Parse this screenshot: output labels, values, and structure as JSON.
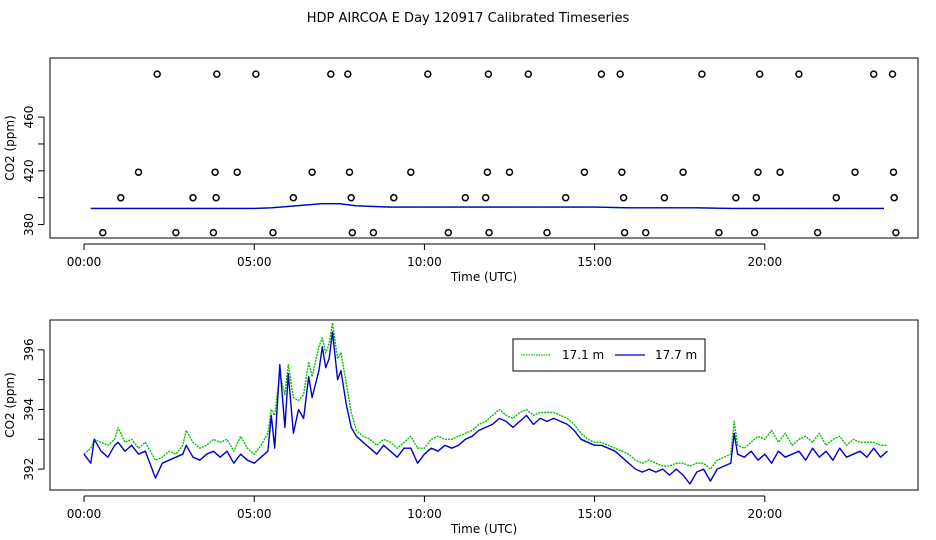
{
  "title": "HDP AIRCOA E  Day 120917  Calibrated Timeseries",
  "colors": {
    "green": "#00c000",
    "blue": "#0000cc",
    "black": "#000000"
  },
  "chart_data": [
    {
      "type": "line",
      "panel": "top",
      "xlabel": "Time (UTC)",
      "ylabel": "CO2 (ppm)",
      "x_ticks": [
        0,
        5,
        10,
        15,
        20
      ],
      "x_tick_labels": [
        "00:00",
        "05:00",
        "10:00",
        "15:00",
        "20:00"
      ],
      "y_ticks": [
        380,
        420,
        460
      ],
      "y_tick_labels": [
        "380",
        "420",
        "460"
      ],
      "xlim": [
        -1,
        24.5
      ],
      "ylim": [
        370,
        504
      ],
      "series": [
        {
          "name": "17.1 m",
          "color": "green",
          "x": [
            0.2,
            1,
            2,
            3,
            4,
            5,
            5.5,
            6,
            6.5,
            7,
            7.5,
            8,
            9,
            10,
            11,
            12,
            13,
            14,
            15,
            16,
            17,
            18,
            19,
            20,
            21,
            22,
            23,
            23.5
          ],
          "y": [
            392,
            392,
            392,
            392,
            392,
            392,
            392.5,
            393.5,
            394.5,
            395.5,
            395.5,
            394,
            393,
            393,
            393,
            393,
            393,
            393,
            393,
            392.5,
            392.5,
            392.5,
            392,
            392,
            392,
            392,
            392,
            392
          ]
        },
        {
          "name": "17.7 m",
          "color": "blue",
          "x": [
            0.2,
            1,
            2,
            3,
            4,
            5,
            5.5,
            6,
            6.5,
            7,
            7.5,
            8,
            9,
            10,
            11,
            12,
            13,
            14,
            15,
            16,
            17,
            18,
            19,
            20,
            21,
            22,
            23,
            23.5
          ],
          "y": [
            392,
            392,
            392,
            392,
            392,
            392,
            392.5,
            393.5,
            394.5,
            395.5,
            395.5,
            394,
            393,
            393,
            393,
            393,
            393,
            393,
            393,
            392.5,
            392.5,
            392.5,
            392,
            392,
            392,
            392,
            392,
            392
          ]
        }
      ],
      "reference_points": {
        "x": [
          0.55,
          1.08,
          1.6,
          2.15,
          2.7,
          3.2,
          3.8,
          3.85,
          3.88,
          3.9,
          4.5,
          5.05,
          5.55,
          6.15,
          6.7,
          7.25,
          7.75,
          7.8,
          7.85,
          7.88,
          8.5,
          9.1,
          9.6,
          10.1,
          10.7,
          11.2,
          11.8,
          11.85,
          11.88,
          11.9,
          12.5,
          13.05,
          13.6,
          14.15,
          14.7,
          15.2,
          15.75,
          15.8,
          15.85,
          15.88,
          16.5,
          17.05,
          17.6,
          18.15,
          18.65,
          19.15,
          19.7,
          19.75,
          19.8,
          19.85,
          20.45,
          21.0,
          21.55,
          22.1,
          22.65,
          23.2,
          23.75,
          23.78,
          23.8,
          23.85
        ],
        "y": [
          374,
          400,
          419,
          492,
          374,
          400,
          374,
          419,
          400,
          492,
          419,
          492,
          374,
          400,
          419,
          492,
          492,
          419,
          400,
          374,
          374,
          400,
          419,
          492,
          374,
          400,
          400,
          419,
          492,
          374,
          419,
          492,
          374,
          400,
          419,
          492,
          492,
          419,
          400,
          374,
          374,
          400,
          419,
          492,
          374,
          400,
          374,
          400,
          419,
          492,
          419,
          492,
          374,
          400,
          419,
          492,
          492,
          419,
          400,
          374
        ]
      }
    },
    {
      "type": "line",
      "panel": "bottom",
      "xlabel": "Time (UTC)",
      "ylabel": "CO2 (ppm)",
      "x_ticks": [
        0,
        5,
        10,
        15,
        20
      ],
      "x_tick_labels": [
        "00:00",
        "05:00",
        "10:00",
        "15:00",
        "20:00"
      ],
      "y_ticks": [
        392,
        394,
        396
      ],
      "y_tick_labels": [
        "392",
        "394",
        "396"
      ],
      "xlim": [
        -1,
        24.5
      ],
      "ylim": [
        391.3,
        397.0
      ],
      "legend": "top-center",
      "series": [
        {
          "name": "17.1 m",
          "color": "green",
          "x": [
            0,
            0.2,
            0.3,
            0.5,
            0.7,
            0.9,
            1.0,
            1.2,
            1.4,
            1.6,
            1.8,
            2.0,
            2.1,
            2.3,
            2.5,
            2.7,
            2.9,
            3.0,
            3.2,
            3.4,
            3.6,
            3.8,
            4.0,
            4.2,
            4.4,
            4.6,
            4.8,
            5.0,
            5.2,
            5.4,
            5.5,
            5.6,
            5.75,
            5.9,
            6.0,
            6.15,
            6.3,
            6.45,
            6.6,
            6.7,
            6.9,
            7.0,
            7.1,
            7.2,
            7.3,
            7.45,
            7.55,
            7.7,
            7.85,
            8.0,
            8.2,
            8.4,
            8.6,
            8.8,
            9.0,
            9.2,
            9.4,
            9.6,
            9.8,
            10.0,
            10.2,
            10.4,
            10.6,
            10.8,
            11.0,
            11.2,
            11.4,
            11.6,
            11.8,
            12.0,
            12.2,
            12.4,
            12.6,
            12.8,
            13.0,
            13.2,
            13.4,
            13.6,
            13.8,
            14.0,
            14.2,
            14.4,
            14.6,
            14.8,
            15.0,
            15.2,
            15.4,
            15.6,
            15.8,
            16.0,
            16.2,
            16.4,
            16.6,
            16.8,
            17.0,
            17.2,
            17.4,
            17.6,
            17.8,
            18.0,
            18.2,
            18.4,
            18.6,
            18.8,
            19.0,
            19.1,
            19.2,
            19.4,
            19.6,
            19.8,
            20.0,
            20.2,
            20.4,
            20.6,
            20.8,
            21.0,
            21.2,
            21.4,
            21.6,
            21.8,
            22.0,
            22.2,
            22.4,
            22.6,
            22.8,
            23.0,
            23.2,
            23.4,
            23.6
          ],
          "y": [
            392.5,
            392.7,
            393.0,
            392.9,
            392.8,
            393.0,
            393.4,
            392.9,
            393.0,
            392.7,
            392.9,
            392.5,
            392.3,
            392.4,
            392.6,
            392.5,
            392.8,
            393.3,
            392.9,
            392.7,
            392.8,
            393.0,
            392.9,
            393.0,
            392.6,
            393.1,
            392.7,
            392.5,
            392.8,
            393.2,
            394.0,
            393.8,
            395.2,
            394.5,
            395.5,
            394.4,
            394.3,
            394.5,
            395.6,
            395.1,
            396.1,
            396.4,
            395.9,
            396.2,
            396.9,
            395.7,
            395.9,
            394.9,
            393.9,
            393.3,
            393.1,
            393.0,
            392.8,
            393.0,
            392.9,
            392.7,
            392.9,
            393.1,
            392.7,
            392.7,
            393.0,
            393.1,
            393.0,
            393.0,
            393.1,
            393.2,
            393.3,
            393.5,
            393.6,
            393.8,
            394.0,
            393.8,
            393.7,
            393.9,
            394.0,
            393.8,
            393.9,
            393.9,
            393.9,
            393.8,
            393.7,
            393.5,
            393.2,
            393.0,
            392.9,
            392.9,
            392.8,
            392.7,
            392.6,
            392.5,
            392.3,
            392.2,
            392.3,
            392.2,
            392.1,
            392.1,
            392.2,
            392.2,
            392.1,
            392.2,
            392.2,
            392.0,
            392.3,
            392.4,
            392.5,
            393.6,
            392.8,
            392.7,
            392.9,
            393.1,
            393.0,
            393.3,
            392.9,
            393.2,
            392.8,
            393.0,
            393.1,
            392.9,
            393.2,
            392.8,
            393.0,
            393.1,
            392.8,
            393.0,
            392.9,
            392.9,
            392.9,
            392.8,
            392.8
          ],
          "_note": ""
        },
        {
          "name": "17.7 m",
          "color": "blue",
          "x": [
            0,
            0.2,
            0.3,
            0.5,
            0.7,
            0.9,
            1.0,
            1.2,
            1.4,
            1.6,
            1.8,
            2.0,
            2.1,
            2.3,
            2.5,
            2.7,
            2.9,
            3.0,
            3.2,
            3.4,
            3.6,
            3.8,
            4.0,
            4.2,
            4.4,
            4.6,
            4.8,
            5.0,
            5.2,
            5.4,
            5.5,
            5.6,
            5.75,
            5.9,
            6.0,
            6.15,
            6.3,
            6.45,
            6.6,
            6.7,
            6.9,
            7.0,
            7.1,
            7.2,
            7.3,
            7.45,
            7.55,
            7.7,
            7.85,
            8.0,
            8.2,
            8.4,
            8.6,
            8.8,
            9.0,
            9.2,
            9.4,
            9.6,
            9.8,
            10.0,
            10.2,
            10.4,
            10.6,
            10.8,
            11.0,
            11.2,
            11.4,
            11.6,
            11.8,
            12.0,
            12.2,
            12.4,
            12.6,
            12.8,
            13.0,
            13.2,
            13.4,
            13.6,
            13.8,
            14.0,
            14.2,
            14.4,
            14.6,
            14.8,
            15.0,
            15.2,
            15.4,
            15.6,
            15.8,
            16.0,
            16.2,
            16.4,
            16.6,
            16.8,
            17.0,
            17.2,
            17.4,
            17.6,
            17.8,
            18.0,
            18.2,
            18.4,
            18.6,
            18.8,
            19.0,
            19.1,
            19.2,
            19.4,
            19.6,
            19.8,
            20.0,
            20.2,
            20.4,
            20.6,
            20.8,
            21.0,
            21.2,
            21.4,
            21.6,
            21.8,
            22.0,
            22.2,
            22.4,
            22.6,
            22.8,
            23.0,
            23.2,
            23.4,
            23.6
          ],
          "y": [
            392.5,
            392.2,
            393.0,
            392.6,
            392.4,
            392.8,
            392.9,
            392.6,
            392.8,
            392.5,
            392.6,
            392.0,
            391.7,
            392.2,
            392.3,
            392.4,
            392.5,
            392.8,
            392.4,
            392.3,
            392.5,
            392.6,
            392.4,
            392.6,
            392.2,
            392.5,
            392.3,
            392.2,
            392.4,
            392.6,
            393.8,
            392.7,
            395.5,
            393.4,
            395.2,
            393.2,
            394.0,
            393.7,
            395.1,
            394.4,
            395.3,
            396.1,
            395.4,
            395.7,
            396.6,
            395.0,
            395.3,
            394.2,
            393.4,
            393.1,
            392.9,
            392.7,
            392.5,
            392.8,
            392.6,
            392.4,
            392.7,
            392.7,
            392.2,
            392.5,
            392.7,
            392.6,
            392.8,
            392.7,
            392.8,
            393.0,
            393.1,
            393.3,
            393.4,
            393.5,
            393.7,
            393.6,
            393.4,
            393.6,
            393.8,
            393.5,
            393.7,
            393.6,
            393.7,
            393.6,
            393.5,
            393.3,
            393.0,
            392.9,
            392.8,
            392.8,
            392.7,
            392.6,
            392.4,
            392.2,
            392.0,
            391.9,
            392.0,
            391.9,
            392.0,
            391.8,
            392.0,
            391.8,
            391.5,
            391.9,
            392.0,
            391.6,
            392.0,
            392.1,
            392.2,
            393.2,
            392.5,
            392.4,
            392.6,
            392.3,
            392.5,
            392.2,
            392.6,
            392.4,
            392.5,
            392.6,
            392.3,
            392.7,
            392.4,
            392.6,
            392.3,
            392.7,
            392.4,
            392.5,
            392.6,
            392.4,
            392.7,
            392.4,
            392.6
          ]
        }
      ]
    }
  ]
}
